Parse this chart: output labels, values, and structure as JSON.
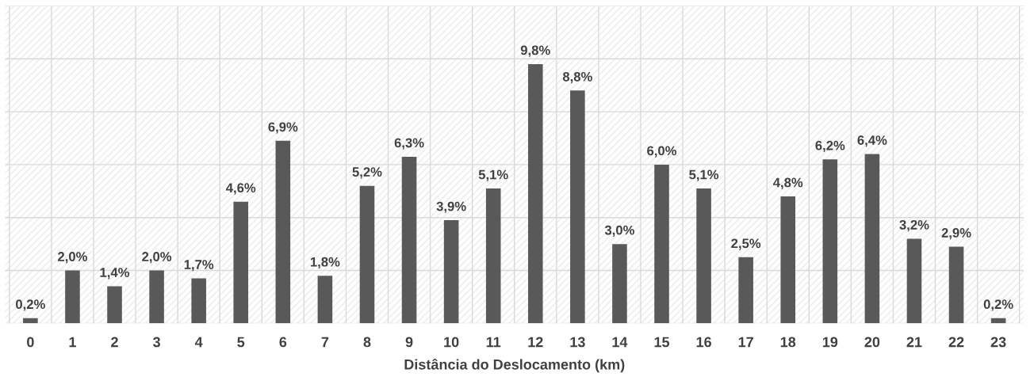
{
  "chart_data": {
    "type": "bar",
    "xlabel": "Distância do Deslocamento (km)",
    "categories": [
      "0",
      "1",
      "2",
      "3",
      "4",
      "5",
      "6",
      "7",
      "8",
      "9",
      "10",
      "11",
      "12",
      "13",
      "14",
      "15",
      "16",
      "17",
      "18",
      "19",
      "20",
      "21",
      "22",
      "23"
    ],
    "values": [
      0.2,
      2.0,
      1.4,
      2.0,
      1.7,
      4.6,
      6.9,
      1.8,
      5.2,
      6.3,
      3.9,
      5.1,
      9.8,
      8.8,
      3.0,
      6.0,
      5.1,
      2.5,
      4.8,
      6.2,
      6.4,
      3.2,
      2.9,
      0.2
    ],
    "value_labels": [
      "0,2%",
      "2,0%",
      "1,4%",
      "2,0%",
      "1,7%",
      "4,6%",
      "6,9%",
      "1,8%",
      "5,2%",
      "6,3%",
      "3,9%",
      "5,1%",
      "9,8%",
      "8,8%",
      "3,0%",
      "6,0%",
      "5,1%",
      "2,5%",
      "4,8%",
      "6,2%",
      "6,4%",
      "3,2%",
      "2,9%",
      "0,2%"
    ],
    "color": "#595959",
    "ylim": [
      0,
      12
    ],
    "yticks": [
      {
        "value": 0,
        "label": null
      },
      {
        "value": 2,
        "label": null
      },
      {
        "value": 4,
        "label": null
      },
      {
        "value": 6,
        "label": null
      },
      {
        "value": 8,
        "label": null
      },
      {
        "value": 10,
        "label": null
      },
      {
        "value": 12,
        "label": null
      }
    ],
    "tick_labels": "x",
    "grid": true,
    "legend": false
  }
}
